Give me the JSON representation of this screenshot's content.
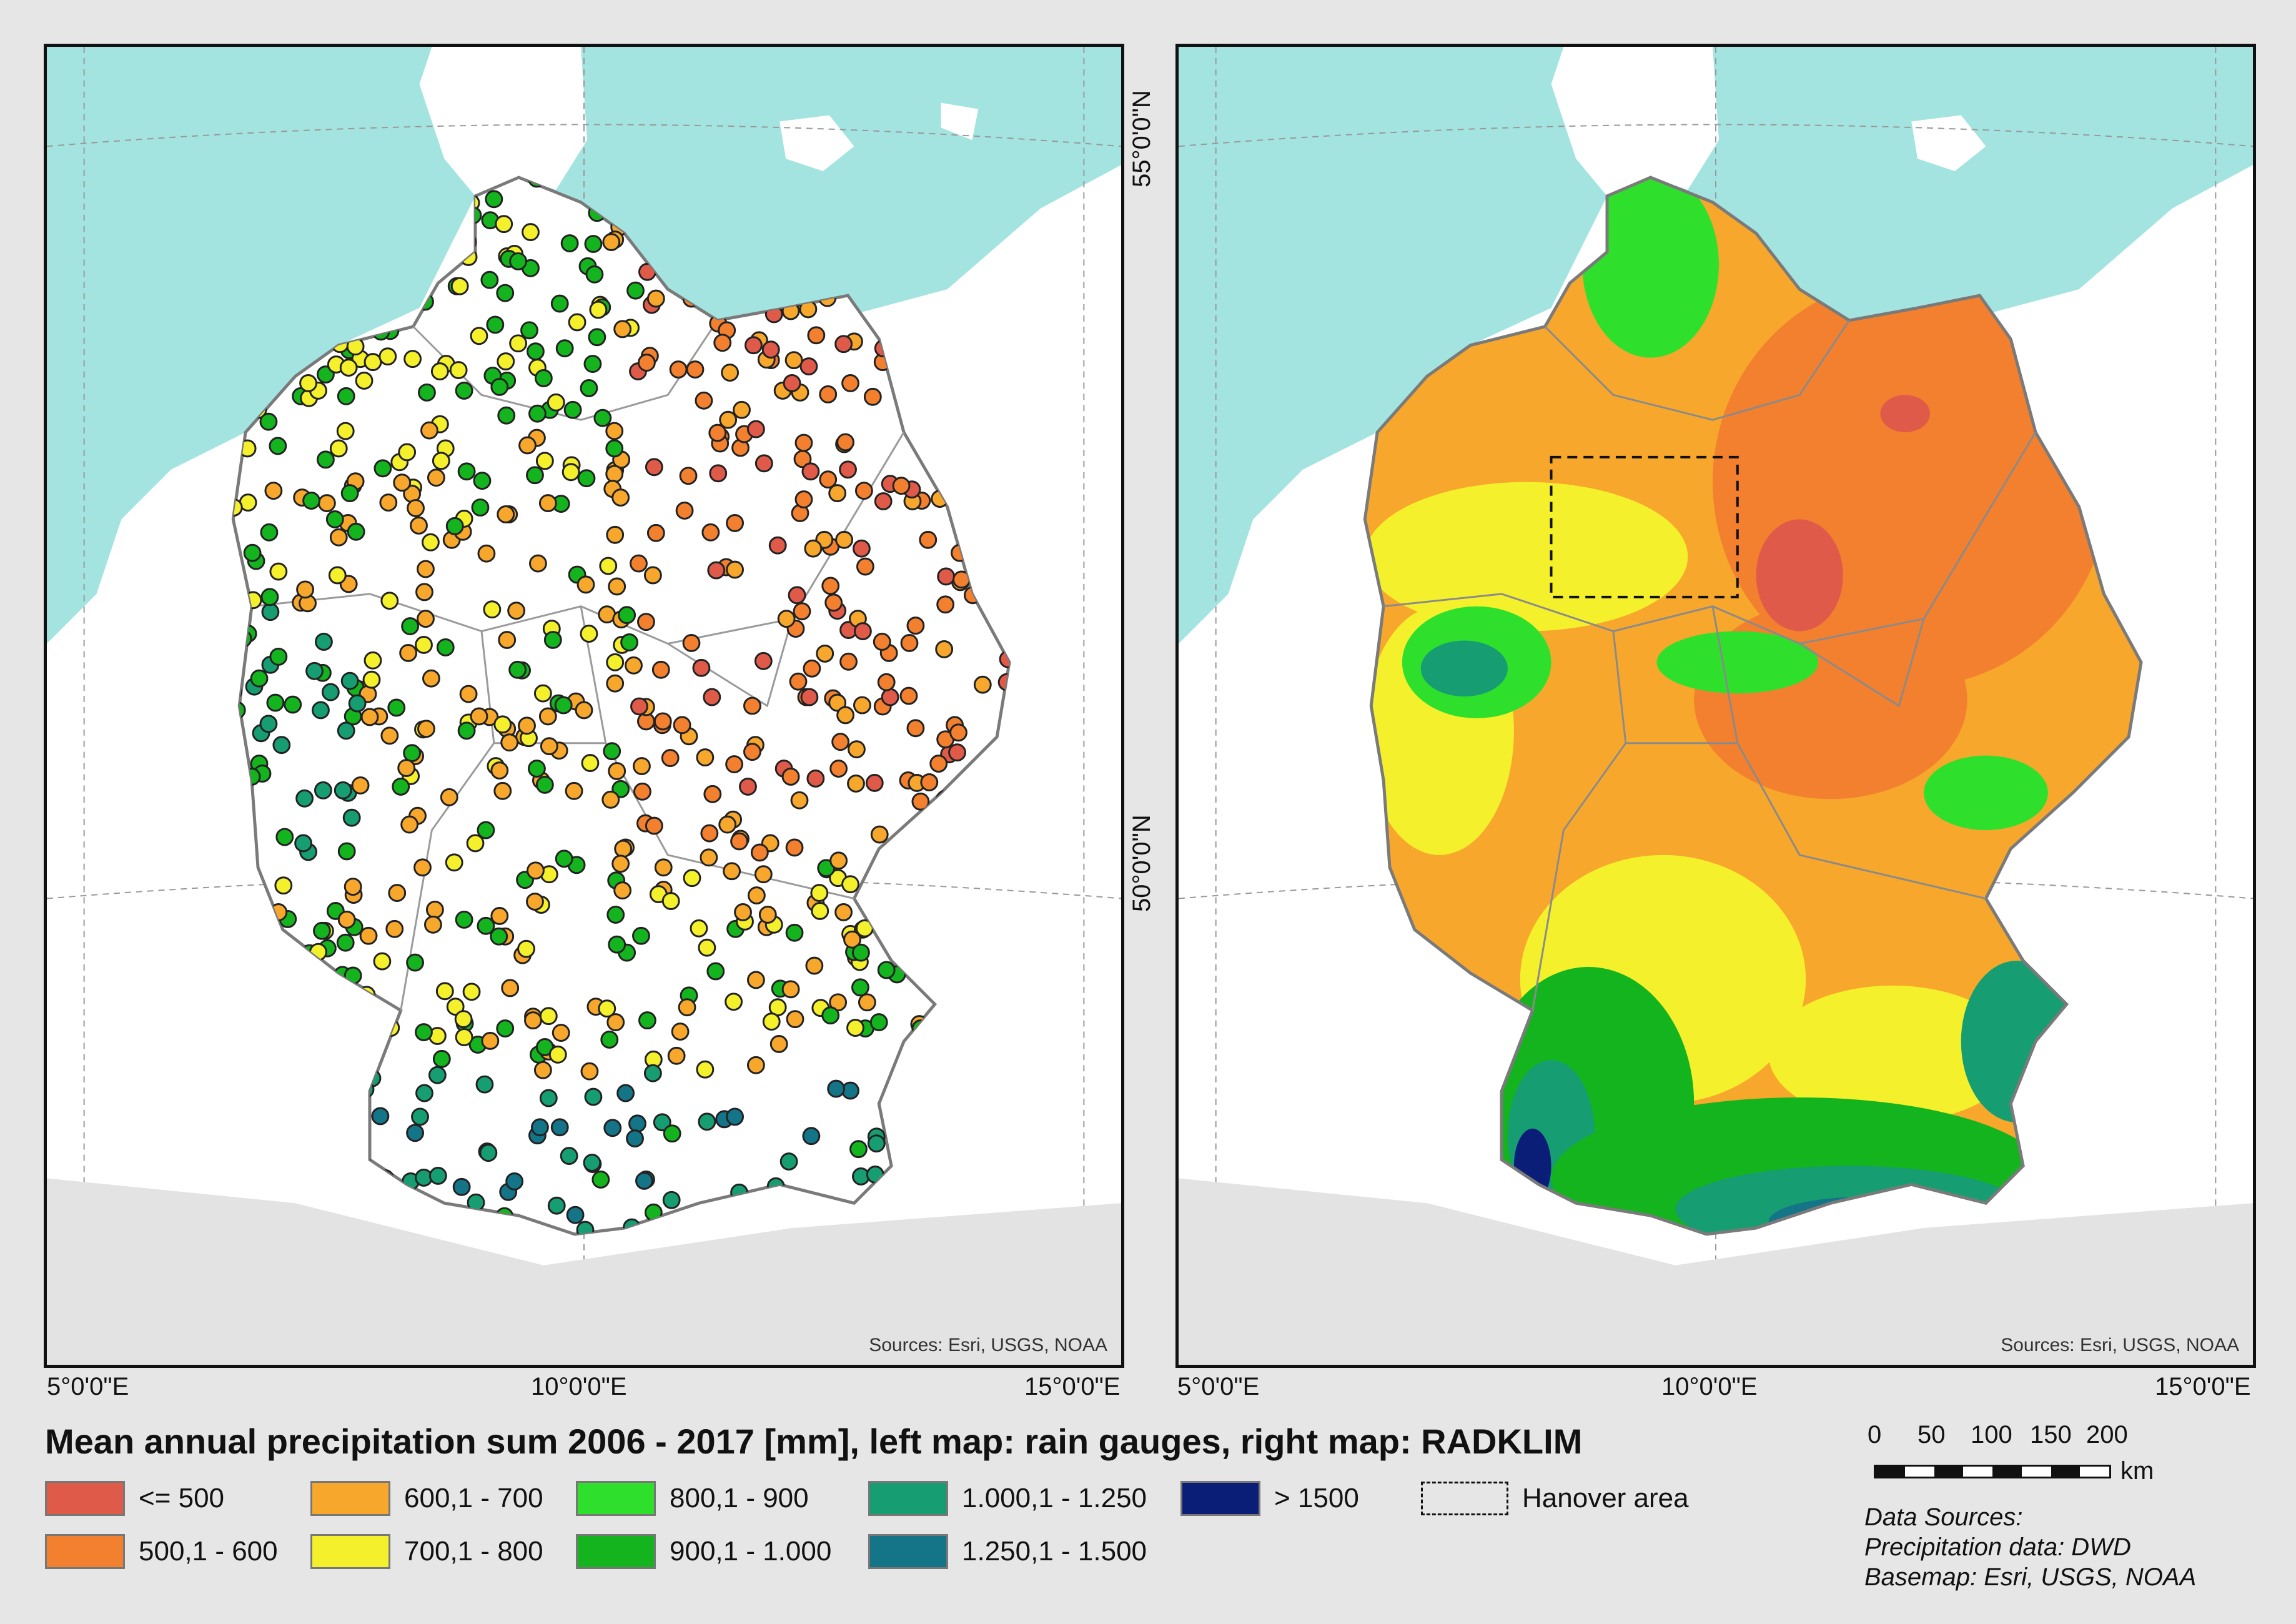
{
  "legend": {
    "title": "Mean annual precipitation sum 2006 - 2017 [mm], left map: rain gauges, right map: RADKLIM",
    "classes": [
      {
        "label": "<= 500",
        "color": "#e05a4a"
      },
      {
        "label": "500,1 - 600",
        "color": "#f3802e"
      },
      {
        "label": "600,1 - 700",
        "color": "#f7a82c"
      },
      {
        "label": "700,1 - 800",
        "color": "#f5f02c"
      },
      {
        "label": "800,1 - 900",
        "color": "#2ee02c"
      },
      {
        "label": "900,1 - 1.000",
        "color": "#14b41e"
      },
      {
        "label": "1.000,1 - 1.250",
        "color": "#169e72"
      },
      {
        "label": "1.250,1 - 1.500",
        "color": "#147488"
      },
      {
        "label": "> 1500",
        "color": "#0a1e78"
      }
    ],
    "hanover_label": "Hanover area"
  },
  "axes": {
    "lon_labels": [
      "5°0'0\"E",
      "10°0'0\"E",
      "15°0'0\"E"
    ],
    "lat_labels": [
      "55°0'0\"N",
      "50°0'0\"N"
    ]
  },
  "maps": {
    "source_left": "Sources: Esri, USGS, NOAA",
    "source_right": "Sources: Esri, USGS, NOAA"
  },
  "scale": {
    "ticks": [
      "0",
      "50",
      "100",
      "150",
      "200"
    ],
    "unit": "km"
  },
  "credits": {
    "line1": "Data Sources:",
    "line2": "Precipitation data: DWD",
    "line3": "Basemap: Esri, USGS, NOAA"
  },
  "colors": {
    "sea": "#a3e4e0",
    "land": "#ffffff",
    "border": "#8a8a8a"
  }
}
